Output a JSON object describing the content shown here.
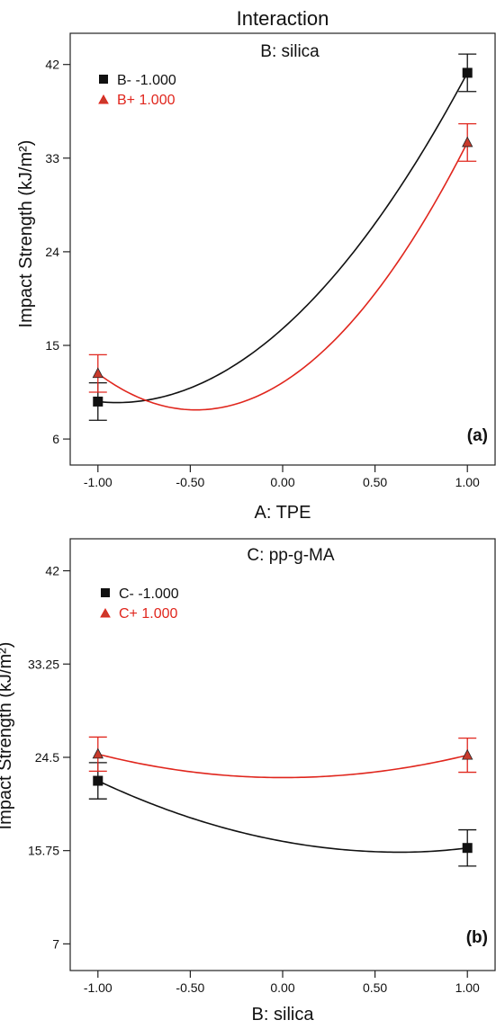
{
  "colors": {
    "black": "#111111",
    "red": "#e0261d",
    "red_marker": "#c93a2c"
  },
  "chart_data": [
    {
      "type": "line",
      "panel_label": "(a)",
      "title": "Interaction",
      "subtitle": "B: silica",
      "xlabel": "A: TPE",
      "ylabel": "Impact Strength (kJ/m²)",
      "xlim": [
        -1.15,
        1.15
      ],
      "ylim": [
        3.5,
        45
      ],
      "xticks": [
        -1,
        -0.5,
        0,
        0.5,
        1
      ],
      "xtick_labels": [
        "-1.00",
        "-0.50",
        "0.00",
        "0.50",
        "1.00"
      ],
      "yticks": [
        6,
        15,
        24,
        33,
        42
      ],
      "ytick_labels": [
        "6",
        "15",
        "24",
        "33",
        "42"
      ],
      "legend_position": "top-left",
      "series": [
        {
          "name": "B- -1.000",
          "marker": "square",
          "color": "#111111",
          "points": [
            {
              "x": -1,
              "y": 9.6,
              "err": 1.8
            },
            {
              "x": 1,
              "y": 41.2,
              "err": 1.8
            }
          ],
          "curve_min": {
            "x": -0.9,
            "y": 9.5
          }
        },
        {
          "name": "B+ 1.000",
          "marker": "triangle",
          "color": "#e0261d",
          "points": [
            {
              "x": -1,
              "y": 12.3,
              "err": 1.8
            },
            {
              "x": 1,
              "y": 34.5,
              "err": 1.8
            }
          ],
          "curve_min": {
            "x": -0.47,
            "y": 8.8
          }
        }
      ]
    },
    {
      "type": "line",
      "panel_label": "(b)",
      "subtitle": "C: pp-g-MA",
      "xlabel": "B: silica",
      "ylabel": "Impact Strength (kJ/m²)",
      "xlim": [
        -1.15,
        1.15
      ],
      "ylim": [
        4.5,
        45
      ],
      "xticks": [
        -1,
        -0.5,
        0,
        0.5,
        1
      ],
      "xtick_labels": [
        "-1.00",
        "-0.50",
        "0.00",
        "0.50",
        "1.00"
      ],
      "yticks": [
        7,
        15.75,
        24.5,
        33.25,
        42
      ],
      "ytick_labels": [
        "7",
        "15.75",
        "24.5",
        "33.25",
        "42"
      ],
      "legend_position": "top-left",
      "series": [
        {
          "name": "C- -1.000",
          "marker": "square",
          "color": "#111111",
          "points": [
            {
              "x": -1,
              "y": 22.3,
              "err": 1.7
            },
            {
              "x": 1,
              "y": 16.0,
              "err": 1.7
            }
          ],
          "curve_min": {
            "x": 0.64,
            "y": 15.6
          }
        },
        {
          "name": "C+ 1.000",
          "marker": "triangle",
          "color": "#e0261d",
          "points": [
            {
              "x": -1,
              "y": 24.8,
              "err": 1.6
            },
            {
              "x": 1,
              "y": 24.7,
              "err": 1.6
            }
          ],
          "curve_min": {
            "x": 0.0,
            "y": 22.6
          }
        }
      ]
    }
  ]
}
